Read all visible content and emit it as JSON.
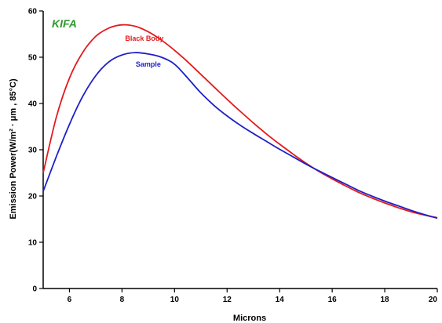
{
  "chart_data": {
    "type": "line",
    "title": "KIFA",
    "xlabel": "Microns",
    "ylabel": "Emission Power(W/m² · μm , 85°C)",
    "xlim": [
      5,
      20
    ],
    "ylim": [
      0,
      60
    ],
    "xticks": [
      6,
      8,
      10,
      12,
      14,
      16,
      18,
      20
    ],
    "yticks": [
      0,
      10,
      20,
      30,
      40,
      50,
      60
    ],
    "grid": false,
    "colors": {
      "title": "#2e9a2e",
      "black_body": "#e41a1c",
      "sample": "#1f1fc8"
    },
    "series": [
      {
        "name": "Black Body",
        "x": [
          5.0,
          5.5,
          6.0,
          6.5,
          7.0,
          7.5,
          8.0,
          8.5,
          9.0,
          9.5,
          10.0,
          10.5,
          11.0,
          11.5,
          12.0,
          12.5,
          13.0,
          13.5,
          14.0,
          14.5,
          15.0,
          15.5,
          16.0,
          16.5,
          17.0,
          17.5,
          18.0,
          18.5,
          19.0,
          19.5,
          20.0
        ],
        "values": [
          25.0,
          37.0,
          45.5,
          51.0,
          54.5,
          56.3,
          57.0,
          56.7,
          55.5,
          53.7,
          51.5,
          49.0,
          46.3,
          43.6,
          40.9,
          38.3,
          35.8,
          33.4,
          31.2,
          29.1,
          27.1,
          25.3,
          23.7,
          22.2,
          20.8,
          19.6,
          18.5,
          17.5,
          16.6,
          15.9,
          15.3
        ]
      },
      {
        "name": "Sample",
        "x": [
          5.0,
          5.5,
          6.0,
          6.5,
          7.0,
          7.5,
          8.0,
          8.5,
          9.0,
          9.5,
          10.0,
          10.5,
          11.0,
          11.5,
          12.0,
          12.5,
          13.0,
          13.5,
          14.0,
          14.5,
          15.0,
          15.5,
          16.0,
          16.5,
          17.0,
          17.5,
          18.0,
          18.5,
          19.0,
          19.5,
          20.0
        ],
        "values": [
          21.0,
          28.5,
          35.5,
          41.5,
          46.0,
          49.0,
          50.5,
          51.0,
          50.7,
          50.0,
          48.5,
          45.5,
          42.3,
          39.6,
          37.3,
          35.3,
          33.5,
          31.8,
          30.1,
          28.5,
          26.9,
          25.4,
          24.0,
          22.6,
          21.2,
          20.0,
          18.9,
          17.9,
          16.9,
          16.0,
          15.2
        ]
      }
    ]
  }
}
